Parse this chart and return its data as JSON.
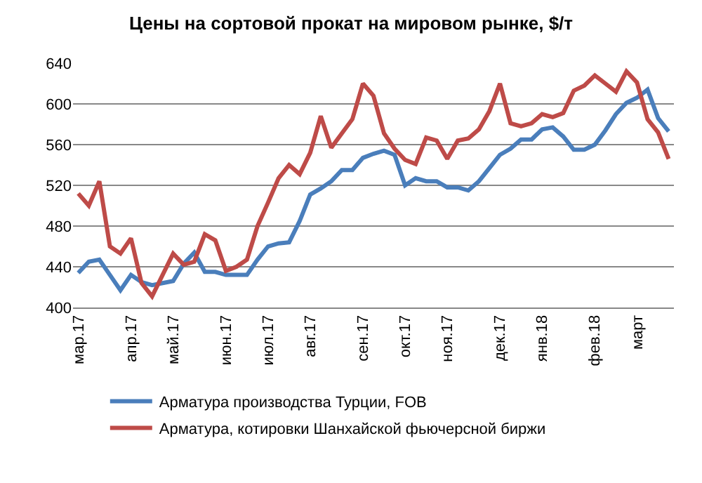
{
  "chart_data": {
    "type": "line",
    "title": "Цены на сортовой прокат на мировом рынке, $/т",
    "categories": [
      "мар.17",
      null,
      null,
      null,
      null,
      "апр.17",
      null,
      null,
      null,
      "май.17",
      null,
      null,
      null,
      null,
      "июн.17",
      null,
      null,
      null,
      "июл.17",
      null,
      null,
      null,
      "авг.17",
      null,
      null,
      null,
      null,
      "сен.17",
      null,
      null,
      null,
      "окт.17",
      null,
      null,
      null,
      "ноя.17",
      null,
      null,
      null,
      null,
      "дек.17",
      null,
      null,
      null,
      "янв.18",
      null,
      null,
      null,
      null,
      "фев.18",
      null,
      null,
      null,
      "март",
      null,
      null,
      null
    ],
    "series": [
      {
        "name": "Арматура производства Турции, FOB",
        "color": "#4a7ebb",
        "values": [
          434,
          445,
          447,
          432,
          417,
          432,
          425,
          422,
          424,
          426,
          443,
          454,
          435,
          435,
          432,
          432,
          432,
          447,
          460,
          463,
          464,
          485,
          511,
          517,
          524,
          535,
          535,
          547,
          551,
          554,
          550,
          520,
          527,
          524,
          524,
          518,
          518,
          515,
          524,
          537,
          550,
          556,
          565,
          565,
          575,
          577,
          568,
          555,
          555,
          560,
          574,
          590,
          601,
          606,
          614,
          586,
          573
        ]
      },
      {
        "name": "Арматура, котировки Шанхайской фьючерсной биржи",
        "color": "#be4b48",
        "values": [
          512,
          500,
          524,
          460,
          453,
          468,
          424,
          411,
          432,
          453,
          442,
          445,
          472,
          466,
          436,
          440,
          447,
          480,
          503,
          527,
          540,
          531,
          552,
          588,
          557,
          571,
          585,
          620,
          608,
          571,
          556,
          545,
          541,
          567,
          564,
          546,
          564,
          566,
          575,
          593,
          620,
          581,
          578,
          581,
          590,
          587,
          591,
          613,
          618,
          628,
          620,
          612,
          632,
          621,
          585,
          572,
          546
        ]
      }
    ],
    "ylim": [
      400,
      640
    ],
    "yticks": [
      400,
      440,
      480,
      520,
      560,
      600,
      640
    ],
    "grid": "y",
    "legend": "bottom",
    "marker": "none",
    "line_style": "solid"
  }
}
